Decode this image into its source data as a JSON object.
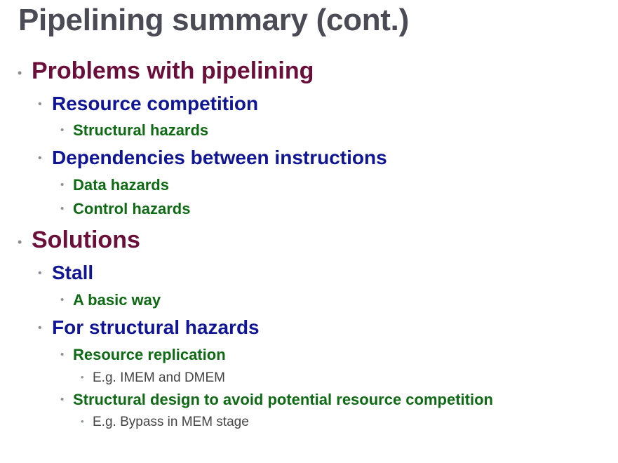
{
  "slide": {
    "title": "Pipelining summary (cont.)",
    "bullet_glyph": "•",
    "items": [
      "Problems with pipelining",
      "Resource competition",
      "Structural hazards",
      "Dependencies between instructions",
      "Data hazards",
      "Control hazards",
      "Solutions",
      "Stall",
      "A basic way",
      "For structural hazards",
      "Resource replication",
      "E.g. IMEM and DMEM",
      "Structural design to avoid potential resource competition",
      "E.g. Bypass in MEM stage"
    ]
  },
  "colors": {
    "title": "#4b4b55",
    "level1": "#6b0f3a",
    "level2": "#101595",
    "level3": "#0e6b14",
    "level4": "#444444",
    "bullet": "#8a8f96"
  }
}
